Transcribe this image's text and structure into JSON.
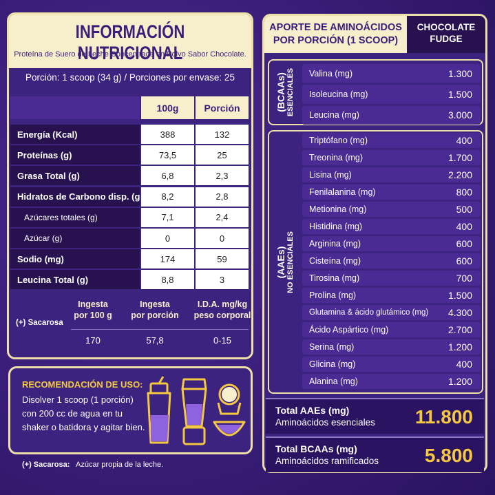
{
  "nutrition": {
    "title": "INFORMACIÓN NUTRICIONAL",
    "subtitle": "Proteína de Suero de Leche Concentrada en Polvo Sabor Chocolate.",
    "serving": "Porción: 1 scoop (34 g) / Porciones por envase: 25",
    "columns": [
      "100g",
      "Porción"
    ],
    "rows": [
      {
        "label": "Energía (Kcal)",
        "values": [
          "388",
          "132"
        ],
        "sub": false
      },
      {
        "label": "Proteínas (g)",
        "values": [
          "73,5",
          "25"
        ],
        "sub": false
      },
      {
        "label": "Grasa Total (g)",
        "values": [
          "6,8",
          "2,3"
        ],
        "sub": false
      },
      {
        "label": "Hidratos de Carbono disp. (g)",
        "values": [
          "8,2",
          "2,8"
        ],
        "sub": false
      },
      {
        "label": "Azúcares totales (g)",
        "values": [
          "7,1",
          "2,4"
        ],
        "sub": true
      },
      {
        "label": "Azúcar (g)",
        "values": [
          "0",
          "0"
        ],
        "sub": true
      },
      {
        "label": "Sodio (mg)",
        "values": [
          "174",
          "59"
        ],
        "sub": false
      },
      {
        "label": "Leucina Total (g)",
        "values": [
          "8,8",
          "3"
        ],
        "sub": false
      }
    ],
    "sucrose": {
      "label": "(+) Sacarosa",
      "headers": [
        [
          "Ingesta",
          "por 100 g"
        ],
        [
          "Ingesta",
          "por porción"
        ],
        [
          "I.D.A. mg/kg",
          "peso corporal"
        ]
      ],
      "values": [
        "170",
        "57,8",
        "0-15"
      ]
    }
  },
  "recommendation": {
    "title": "RECOMENDACIÓN DE USO:",
    "lines": [
      "Disolver 1 scoop (1 porción)",
      "con 200 cc de agua en tu",
      "shaker o batidora y agitar bien."
    ]
  },
  "footnote": {
    "label": "(+) Sacarosa:",
    "text": "Azúcar propia de la leche."
  },
  "amino": {
    "title": [
      "APORTE DE AMINOÁCIDOS",
      "POR PORCIÓN (1 SCOOP)"
    ],
    "flavor": [
      "CHOCOLATE",
      "FUDGE"
    ],
    "groups": [
      {
        "label": "(BCAAs)",
        "sub": "ESENCIALES",
        "rows": [
          [
            "Valina (mg)",
            "1.300"
          ],
          [
            "Isoleucina (mg)",
            "1.500"
          ],
          [
            "Leucina (mg)",
            "3.000"
          ]
        ]
      },
      {
        "label": "(AAEs)",
        "sub": "NO ESENCIALES",
        "rows": [
          [
            "Triptófano (mg)",
            "400"
          ],
          [
            "Treonina (mg)",
            "1.700"
          ],
          [
            "Lisina (mg)",
            "2.200"
          ],
          [
            "Fenilalanina (mg)",
            "800"
          ],
          [
            "Metionina (mg)",
            "500"
          ],
          [
            "Histidina (mg)",
            "400"
          ],
          [
            "Arginina (mg)",
            "600"
          ],
          [
            "Cisteína (mg)",
            "600"
          ],
          [
            "Tirosina (mg)",
            "700"
          ],
          [
            "Prolina (mg)",
            "1.500"
          ],
          [
            "Glutamina & ácido glutámico (mg)",
            "4.300"
          ],
          [
            "Ácido Aspártico (mg)",
            "2.700"
          ],
          [
            "Serina (mg)",
            "1.200"
          ],
          [
            "Glicina (mg)",
            "400"
          ],
          [
            "Alanina (mg)",
            "1.200"
          ]
        ]
      }
    ],
    "totals": [
      {
        "label": "Total AAEs (mg)",
        "sub": "Aminoácidos esenciales",
        "value": "11.800"
      },
      {
        "label": "Total BCAAs (mg)",
        "sub": "Aminoácidos ramificados",
        "value": "5.800"
      }
    ]
  }
}
